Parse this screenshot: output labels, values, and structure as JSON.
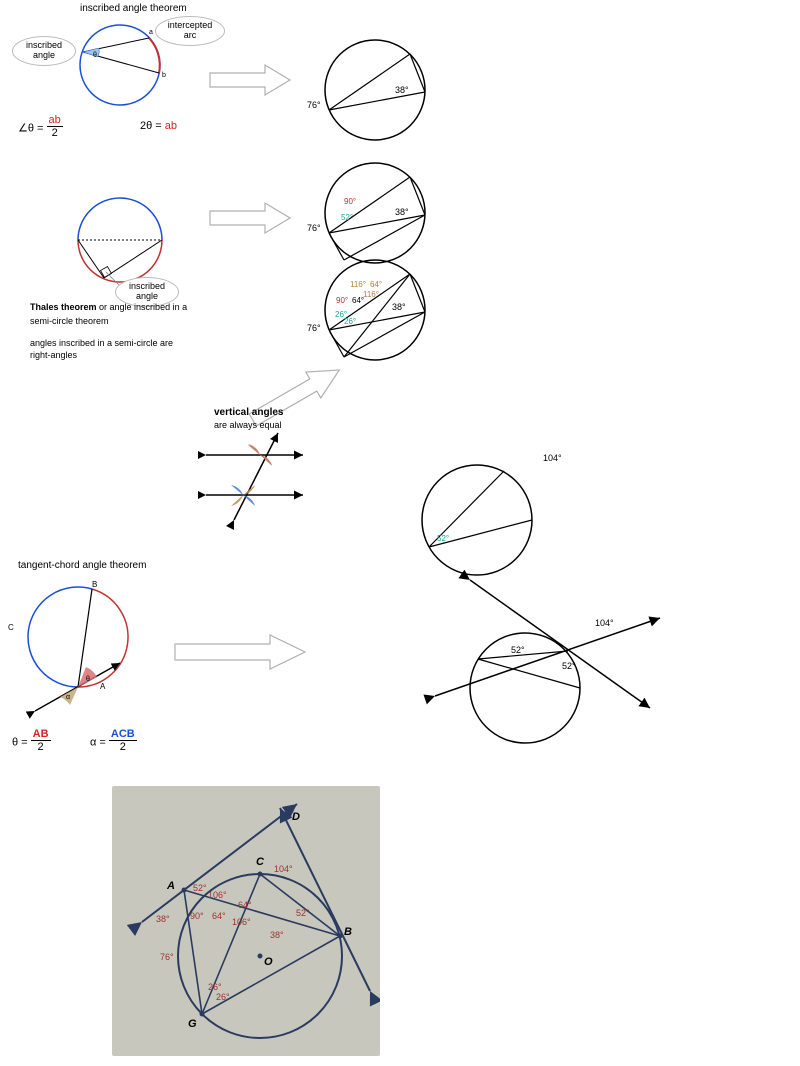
{
  "titles": {
    "inscribed": "inscribed angle theorem",
    "tangent": "tangent-chord angle theorem",
    "vertical_title": "vertical angles",
    "vertical_sub": "are always equal"
  },
  "bubbles": {
    "inscribed_angle": "inscribed\nangle",
    "intercepted_arc": "intercepted\narc",
    "inscribed_angle2": "inscribed\nangle"
  },
  "formulas": {
    "inscribed_left_lhs": "∠θ =",
    "inscribed_left_num": "ab",
    "inscribed_left_den": "2",
    "inscribed_right_lhs": "2θ =",
    "inscribed_right_rhs": "ab",
    "tangent1_lhs": "θ =",
    "tangent1_num": "AB",
    "tangent1_den": "2",
    "tangent2_lhs": "α =",
    "tangent2_num": "ACB",
    "tangent2_den": "2"
  },
  "thales": {
    "line1a": "Thales theorem",
    "line1b": " or angle inscribed in a",
    "line2": "semi-circle theorem",
    "line3": "angles inscribed in a semi-circle are",
    "line4": "right-angles"
  },
  "labels": {
    "a": "a",
    "b": "b",
    "A": "A",
    "B": "B",
    "C": "C",
    "theta": "θ",
    "alpha": "α",
    "d76": "76°",
    "d38": "38°",
    "d90": "90°",
    "d52": "52°",
    "d104": "104°",
    "d116": "116°",
    "d64": "64°",
    "d26": "26°"
  },
  "colors": {
    "red_arc": "#c23232",
    "blue_arc": "#1a4fd9",
    "teal": "#1aa3a0",
    "tan": "#b0843a",
    "green_fill": "#6aa84f",
    "pink_fill": "#d97070",
    "blue_fill": "#3c78d8",
    "brown_fill": "#b98d4a",
    "tan_fill": "#c2a678",
    "gray_stroke": "#b0b0b0",
    "worked_bg": "#c7c7bd",
    "worked_pen": "#2a3b5f",
    "worked_red": "#a03030"
  },
  "worked": {
    "D": "D",
    "C": "C",
    "A": "A",
    "B": "B",
    "G": "G",
    "O": "O",
    "d104": "104°",
    "d52": "52°",
    "d106": "106°",
    "d64": "64°",
    "d90": "90°",
    "d38a": "38°",
    "d38b": "38°",
    "d76": "76°",
    "d26a": "26°",
    "d26b": "26°"
  }
}
